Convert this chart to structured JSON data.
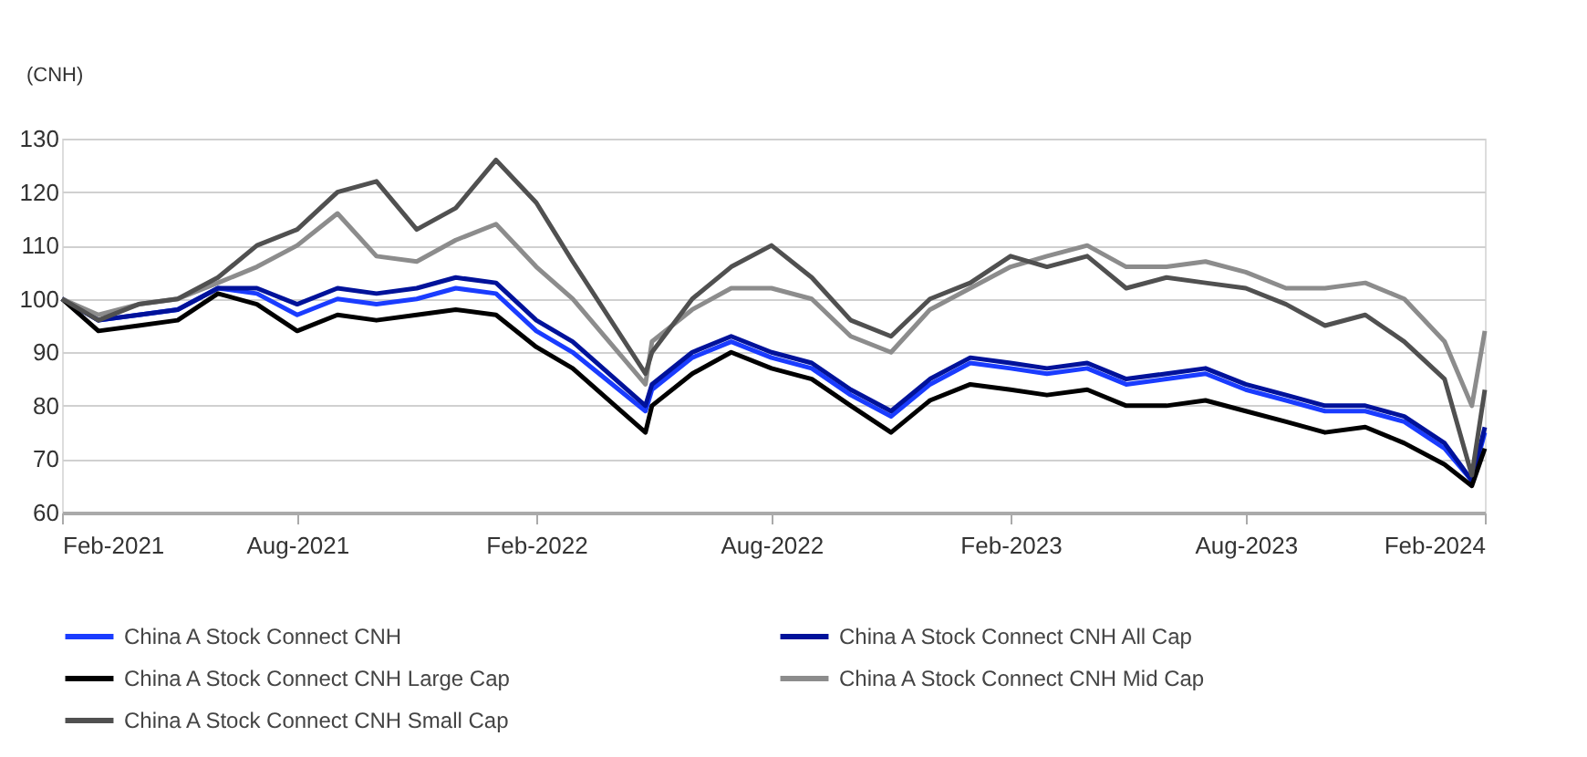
{
  "chart_data": {
    "type": "line",
    "ylabel": "(CNH)",
    "x": [
      "2021-02-01",
      "2021-03-01",
      "2021-04-01",
      "2021-05-01",
      "2021-06-01",
      "2021-07-01",
      "2021-08-01",
      "2021-09-01",
      "2021-10-01",
      "2021-11-01",
      "2021-12-01",
      "2022-01-01",
      "2022-02-01",
      "2022-03-01",
      "2022-04-26",
      "2022-05-01",
      "2022-06-01",
      "2022-07-01",
      "2022-08-01",
      "2022-09-01",
      "2022-10-01",
      "2022-11-01",
      "2022-12-01",
      "2023-01-01",
      "2023-02-01",
      "2023-03-01",
      "2023-04-01",
      "2023-05-01",
      "2023-06-01",
      "2023-07-01",
      "2023-08-01",
      "2023-09-01",
      "2023-10-01",
      "2023-11-01",
      "2023-12-01",
      "2024-01-01",
      "2024-01-22",
      "2024-02-01"
    ],
    "series": [
      {
        "name": "China A Stock Connect CNH",
        "color": "#1a3cff",
        "values": [
          100,
          96,
          97,
          98,
          102,
          101,
          97,
          100,
          99,
          100,
          102,
          101,
          94,
          90,
          79,
          83,
          89,
          92,
          89,
          87,
          82,
          78,
          84,
          88,
          87,
          86,
          87,
          84,
          85,
          86,
          83,
          81,
          79,
          79,
          77,
          72,
          66,
          75
        ]
      },
      {
        "name": "China A Stock Connect CNH All Cap",
        "color": "#00129a",
        "values": [
          100,
          96,
          97,
          98,
          102,
          102,
          99,
          102,
          101,
          102,
          104,
          103,
          96,
          92,
          80,
          84,
          90,
          93,
          90,
          88,
          83,
          79,
          85,
          89,
          88,
          87,
          88,
          85,
          86,
          87,
          84,
          82,
          80,
          80,
          78,
          73,
          66,
          76
        ]
      },
      {
        "name": "China A Stock Connect CNH Large Cap",
        "color": "#000000",
        "values": [
          100,
          94,
          95,
          96,
          101,
          99,
          94,
          97,
          96,
          97,
          98,
          97,
          91,
          87,
          75,
          80,
          86,
          90,
          87,
          85,
          80,
          75,
          81,
          84,
          83,
          82,
          83,
          80,
          80,
          81,
          79,
          77,
          75,
          76,
          73,
          69,
          65,
          72
        ]
      },
      {
        "name": "China A Stock Connect CNH Mid Cap",
        "color": "#8c8c8c",
        "values": [
          100,
          97,
          99,
          100,
          103,
          106,
          110,
          116,
          108,
          107,
          111,
          114,
          106,
          100,
          84,
          92,
          98,
          102,
          102,
          100,
          93,
          90,
          98,
          102,
          106,
          108,
          110,
          106,
          106,
          107,
          105,
          102,
          102,
          103,
          100,
          92,
          80,
          94
        ]
      },
      {
        "name": "China A Stock Connect CNH Small Cap",
        "color": "#505050",
        "values": [
          100,
          96,
          99,
          100,
          104,
          110,
          113,
          120,
          122,
          113,
          117,
          126,
          118,
          107,
          86,
          90,
          100,
          106,
          110,
          104,
          96,
          93,
          100,
          103,
          108,
          106,
          108,
          102,
          104,
          103,
          102,
          99,
          95,
          97,
          92,
          85,
          67,
          83
        ]
      }
    ],
    "xlim": [
      "2021-02-01",
      "2024-02-01"
    ],
    "xticks": [
      {
        "value": "2021-02-01",
        "label": "Feb-2021"
      },
      {
        "value": "2021-08-01",
        "label": "Aug-2021"
      },
      {
        "value": "2022-02-01",
        "label": "Feb-2022"
      },
      {
        "value": "2022-08-01",
        "label": "Aug-2022"
      },
      {
        "value": "2023-02-01",
        "label": "Feb-2023"
      },
      {
        "value": "2023-08-01",
        "label": "Aug-2023"
      },
      {
        "value": "2024-02-01",
        "label": "Feb-2024"
      }
    ],
    "ylim": [
      60,
      130
    ],
    "yticks": [
      60,
      70,
      80,
      90,
      100,
      110,
      120,
      130
    ],
    "grid": "y",
    "legend": "bottom",
    "marker": "none",
    "line_style": "solid"
  }
}
